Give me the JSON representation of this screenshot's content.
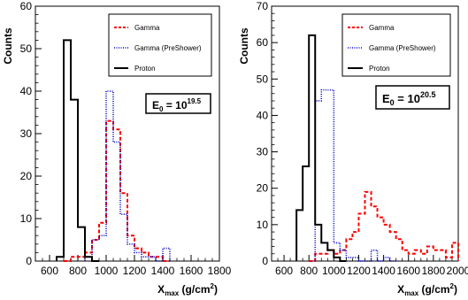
{
  "chart_data": [
    {
      "type": "histogram",
      "ylabel": "Counts",
      "xlabel_main": "X",
      "xlabel_sub": "max",
      "xlabel_unit_pre": " (g/cm",
      "xlabel_unit_sup": "2",
      "xlabel_unit_post": ")",
      "xlim": [
        500,
        1800
      ],
      "ylim": [
        0,
        60
      ],
      "xticks": [
        "600",
        "800",
        "1000",
        "1200",
        "1400",
        "1600",
        "1800"
      ],
      "xtick_values": [
        600,
        800,
        1000,
        1200,
        1400,
        1600,
        1800
      ],
      "yticks": [
        "0",
        "10",
        "20",
        "30",
        "40",
        "50",
        "60"
      ],
      "ytick_values": [
        0,
        10,
        20,
        30,
        40,
        50,
        60
      ],
      "annotation": {
        "base": "E",
        "sub": "0",
        "eq": " = 10",
        "sup": "19.5"
      },
      "legend": {
        "placement": "top-right"
      },
      "series": [
        {
          "name": "Gamma",
          "color": "#ff0000",
          "style": "dashed",
          "edges": [
            700,
            750,
            800,
            850,
            900,
            950,
            1000,
            1050,
            1100,
            1150,
            1200,
            1250,
            1300,
            1350,
            1400,
            1450
          ],
          "counts": [
            0,
            1,
            1,
            2,
            5,
            9,
            33,
            31,
            16,
            6,
            3,
            2,
            1,
            1,
            0
          ]
        },
        {
          "name": "Gamma (PreShower)",
          "color": "#0000cc",
          "style": "dotted",
          "edges": [
            850,
            900,
            950,
            1000,
            1050,
            1100,
            1150,
            1200,
            1250,
            1300,
            1350,
            1400,
            1450
          ],
          "counts": [
            1,
            5,
            6,
            40,
            28,
            11,
            4,
            2,
            1,
            1,
            0,
            3
          ]
        },
        {
          "name": "Proton",
          "color": "#000000",
          "style": "solid",
          "edges": [
            650,
            700,
            750,
            800,
            850,
            900,
            950
          ],
          "counts": [
            1,
            52,
            38,
            8,
            1,
            0
          ]
        }
      ]
    },
    {
      "type": "histogram",
      "ylabel": "Counts",
      "xlabel_main": "X",
      "xlabel_sub": "max",
      "xlabel_unit_pre": " (g/cm",
      "xlabel_unit_sup": "2",
      "xlabel_unit_post": ")",
      "xlim": [
        500,
        2000
      ],
      "ylim": [
        0,
        70
      ],
      "xticks": [
        "600",
        "800",
        "1000",
        "1200",
        "1400",
        "1600",
        "1800",
        "2000"
      ],
      "xtick_values": [
        600,
        800,
        1000,
        1200,
        1400,
        1600,
        1800,
        2000
      ],
      "yticks": [
        "0",
        "10",
        "20",
        "30",
        "40",
        "50",
        "60",
        "70"
      ],
      "ytick_values": [
        0,
        10,
        20,
        30,
        40,
        50,
        60,
        70
      ],
      "annotation": {
        "base": "E",
        "sub": "0",
        "eq": " = 10",
        "sup": "20.5"
      },
      "legend": {
        "placement": "top-right"
      },
      "series": [
        {
          "name": "Gamma",
          "color": "#ff0000",
          "style": "dashed",
          "edges": [
            800,
            850,
            900,
            950,
            1000,
            1050,
            1100,
            1150,
            1200,
            1250,
            1300,
            1350,
            1400,
            1450,
            1500,
            1550,
            1600,
            1650,
            1700,
            1750,
            1800,
            1850,
            1900,
            1950,
            2000
          ],
          "counts": [
            0,
            2,
            2,
            3,
            2,
            3,
            6,
            8,
            13,
            19,
            15,
            12,
            10,
            8,
            6,
            3,
            2,
            3,
            2,
            4,
            3,
            3,
            1,
            5
          ]
        },
        {
          "name": "Gamma (PreShower)",
          "color": "#0000cc",
          "style": "dotted",
          "edges": [
            850,
            900,
            950,
            1000,
            1050,
            1100,
            1150,
            1200,
            1250,
            1300,
            1350,
            1400,
            1450,
            1500
          ],
          "counts": [
            44,
            47,
            47,
            5,
            3,
            1,
            1,
            0,
            0,
            3,
            0,
            1,
            0
          ]
        },
        {
          "name": "Proton",
          "color": "#000000",
          "style": "solid",
          "edges": [
            700,
            750,
            800,
            850,
            900,
            950,
            1000,
            1050,
            1100
          ],
          "counts": [
            14,
            26,
            62,
            10,
            5,
            3,
            1,
            0
          ]
        }
      ]
    }
  ]
}
